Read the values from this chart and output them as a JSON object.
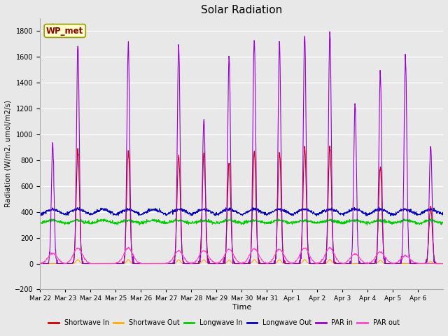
{
  "title": "Solar Radiation",
  "xlabel": "Time",
  "ylabel": "Radiation (W/m2, umol/m2/s)",
  "ylim": [
    -200,
    1900
  ],
  "yticks": [
    -200,
    0,
    200,
    400,
    600,
    800,
    1000,
    1200,
    1400,
    1600,
    1800
  ],
  "bg_color": "#e8e8e8",
  "watermark": "WP_met",
  "n_days": 16,
  "day_labels": [
    "Mar 22",
    "Mar 23",
    "Mar 24",
    "Mar 25",
    "Mar 26",
    "Mar 27",
    "Mar 28",
    "Mar 29",
    "Mar 30",
    "Mar 31",
    "Apr 1",
    "Apr 2",
    "Apr 3",
    "Apr 4",
    "Apr 5",
    "Apr 6"
  ],
  "legend": [
    {
      "label": "Shortwave In",
      "color": "#cc0000"
    },
    {
      "label": "Shortwave Out",
      "color": "#ffaa00"
    },
    {
      "label": "Longwave In",
      "color": "#00cc00"
    },
    {
      "label": "Longwave Out",
      "color": "#0000bb"
    },
    {
      "label": "PAR in",
      "color": "#9900cc"
    },
    {
      "label": "PAR out",
      "color": "#ff44cc"
    }
  ],
  "sw_in_peaks": [
    0,
    870,
    0,
    870,
    0,
    840,
    850,
    780,
    860,
    860,
    890,
    900,
    0,
    750,
    0,
    440
  ],
  "par_in_peaks": [
    920,
    1700,
    0,
    1700,
    0,
    1680,
    1120,
    1610,
    1750,
    1700,
    1780,
    1790,
    1230,
    1480,
    1600,
    930
  ],
  "par_out_peaks": [
    80,
    120,
    0,
    120,
    0,
    100,
    100,
    110,
    115,
    110,
    120,
    120,
    75,
    90,
    60,
    0
  ],
  "lw_in_base": 310,
  "lw_out_base": 370,
  "sw_out_scale": 30
}
